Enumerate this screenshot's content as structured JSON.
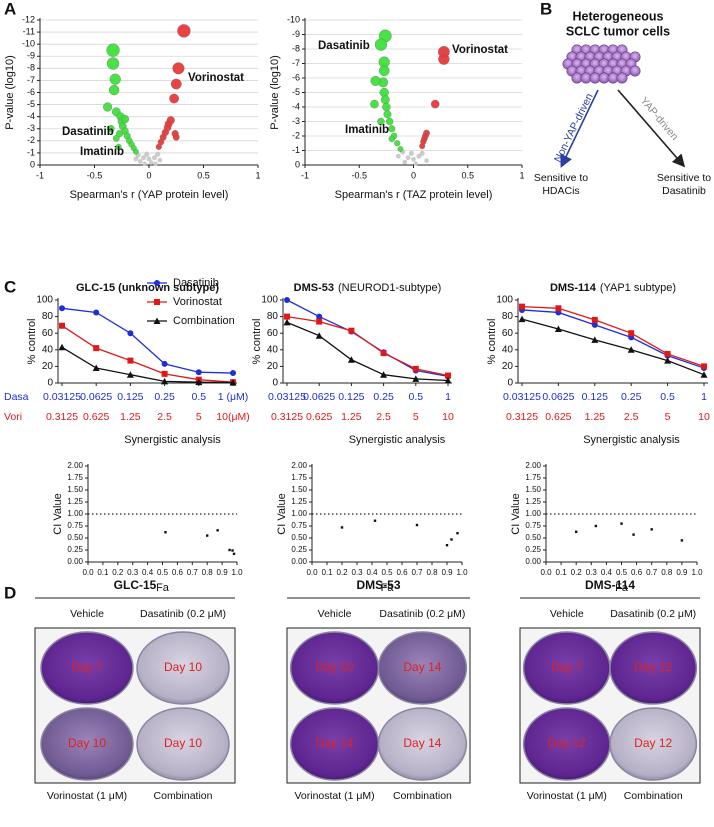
{
  "panel_labels": [
    "A",
    "B",
    "C",
    "D"
  ],
  "chart_data": [
    {
      "type": "scatter",
      "xlabel": "Spearman's r (YAP protein level)",
      "ylabel": "P-value (log10)",
      "xlim": [
        -1,
        1
      ],
      "xticks": [
        -1,
        -0.5,
        0,
        0.5,
        1
      ],
      "ylim": [
        0,
        -12
      ],
      "yticks": [
        -12,
        -11,
        -10,
        -9,
        -8,
        -7,
        -6,
        -5,
        -4,
        -3,
        -2,
        -1,
        0
      ],
      "grid": true,
      "annotations": [
        "Vorinostat",
        "Dasatinib",
        "Imatinib"
      ],
      "series": [
        {
          "color": "#c8c8c8",
          "x": [
            -0.1,
            -0.05,
            0,
            0.05,
            0.08,
            -0.08,
            0.02,
            -0.02,
            0.1,
            -0.12,
            0.06,
            -0.04
          ],
          "values": [
            -0.8,
            -0.6,
            -0.5,
            -0.6,
            -0.9,
            -0.3,
            -0.2,
            -0.9,
            -0.4,
            -0.5,
            -0.1,
            -0.1
          ]
        },
        {
          "color": "#3de03a",
          "x": [
            -0.33,
            -0.33,
            -0.31,
            -0.32,
            -0.38,
            -0.3,
            -0.26,
            -0.25,
            -0.24,
            -0.22,
            -0.2,
            -0.18,
            -0.16,
            -0.14,
            -0.12,
            -0.35,
            -0.3,
            -0.28,
            -0.22,
            -0.27
          ],
          "values": [
            -9.5,
            -8.4,
            -7.1,
            -6.2,
            -4.8,
            -4.4,
            -4.0,
            -3.6,
            -3.2,
            -2.8,
            -2.4,
            -2.0,
            -1.7,
            -1.4,
            -1.1,
            -3.0,
            -2.2,
            -1.5,
            -3.8,
            -2.6
          ]
        },
        {
          "color": "#e8393a",
          "x": [
            0.32,
            0.27,
            0.25,
            0.23,
            0.2,
            0.18,
            0.17,
            0.15,
            0.13,
            0.11,
            0.09,
            0.24,
            0.25
          ],
          "values": [
            -11.1,
            -8.0,
            -6.7,
            -5.5,
            -3.7,
            -3.4,
            -3.1,
            -2.7,
            -2.3,
            -1.9,
            -1.5,
            -2.6,
            -2.3
          ]
        }
      ]
    },
    {
      "type": "scatter",
      "xlabel": "Spearman's r (TAZ protein level)",
      "ylabel": "P-value (log10)",
      "xlim": [
        -1,
        1
      ],
      "xticks": [
        -1,
        -0.5,
        0,
        0.5,
        1
      ],
      "ylim": [
        0,
        -10
      ],
      "yticks": [
        -10,
        -9,
        -8,
        -7,
        -6,
        -5,
        -4,
        -3,
        -2,
        -1,
        0
      ],
      "grid": true,
      "annotations": [
        "Vorinostat",
        "Dasatinib",
        "Imatinib"
      ],
      "series": [
        {
          "color": "#c8c8c8",
          "x": [
            -0.1,
            -0.05,
            0,
            0.05,
            0.08,
            -0.08,
            0.02,
            -0.02,
            0.12,
            -0.14
          ],
          "values": [
            -0.9,
            -0.5,
            -0.4,
            -0.6,
            -0.8,
            -0.2,
            -0.1,
            -0.8,
            -0.3,
            -0.6
          ]
        },
        {
          "color": "#3de03a",
          "x": [
            -0.26,
            -0.3,
            -0.27,
            -0.27,
            -0.28,
            -0.27,
            -0.26,
            -0.25,
            -0.24,
            -0.22,
            -0.2,
            -0.18,
            -0.15,
            -0.12,
            -0.35,
            -0.36,
            -0.3,
            -0.2
          ],
          "values": [
            -8.9,
            -8.3,
            -7.1,
            -6.5,
            -5.7,
            -5.0,
            -4.5,
            -4.0,
            -3.5,
            -3.0,
            -2.5,
            -2.0,
            -1.5,
            -1.1,
            -5.8,
            -4.2,
            -3.0,
            -1.8
          ]
        },
        {
          "color": "#e8393a",
          "x": [
            0.28,
            0.28,
            0.2,
            0.12,
            0.11,
            0.1,
            0.09,
            0.08
          ],
          "values": [
            -7.8,
            -7.3,
            -4.2,
            -2.2,
            -2.0,
            -1.8,
            -1.6,
            -1.3
          ]
        }
      ]
    },
    {
      "type": "line",
      "title": "GLC-15 (unknown subtype)",
      "ylabel": "% control",
      "row_labels": [
        "Dasa",
        "Vori"
      ],
      "categories": [
        "0.03125",
        "0.0625",
        "0.125",
        "0.25",
        "0.5",
        "1 (μM)"
      ],
      "secondary_categories": [
        "0.3125",
        "0.625",
        "1.25",
        "2.5",
        "5",
        "10(μM)"
      ],
      "ylim": [
        0,
        100
      ],
      "yticks": [
        0,
        20,
        40,
        60,
        80,
        100
      ],
      "legend": "upper right",
      "series": [
        {
          "name": "Dasatinib",
          "color": "#1f2fd6",
          "marker": "circle",
          "values": [
            90,
            85,
            60,
            23,
            13,
            12
          ]
        },
        {
          "name": "Vorinostat",
          "color": "#e01818",
          "marker": "square",
          "values": [
            69,
            42,
            27,
            11,
            4,
            1
          ]
        },
        {
          "name": "Combination",
          "color": "#111111",
          "marker": "triangle",
          "values": [
            43,
            18,
            10,
            2,
            1,
            0.5
          ]
        }
      ]
    },
    {
      "type": "line",
      "title": "DMS-53",
      "subtitle": "(NEUROD1-subtype)",
      "ylabel": "% control",
      "categories": [
        "0.03125",
        "0.0625",
        "0.125",
        "0.25",
        "0.5",
        "1"
      ],
      "secondary_categories": [
        "0.3125",
        "0.625",
        "1.25",
        "2.5",
        "5",
        "10"
      ],
      "ylim": [
        0,
        100
      ],
      "yticks": [
        0,
        20,
        40,
        60,
        80,
        100
      ],
      "series": [
        {
          "color": "#1f2fd6",
          "marker": "circle",
          "values": [
            100,
            80,
            62,
            37,
            15,
            8
          ]
        },
        {
          "color": "#e01818",
          "marker": "square",
          "values": [
            80,
            74,
            63,
            36,
            17,
            9
          ]
        },
        {
          "color": "#111111",
          "marker": "triangle",
          "values": [
            73,
            57,
            28,
            10,
            5,
            3
          ]
        }
      ]
    },
    {
      "type": "line",
      "title": "DMS-114",
      "subtitle": "(YAP1 subtype)",
      "ylabel": "% control",
      "categories": [
        "0.03125",
        "0.0625",
        "0.125",
        "0.25",
        "0.5",
        "1"
      ],
      "secondary_categories": [
        "0.3125",
        "0.625",
        "1.25",
        "2.5",
        "5",
        "10"
      ],
      "ylim": [
        0,
        100
      ],
      "yticks": [
        0,
        20,
        40,
        60,
        80,
        100
      ],
      "series": [
        {
          "color": "#1f2fd6",
          "marker": "circle",
          "values": [
            88,
            85,
            70,
            55,
            33,
            18
          ]
        },
        {
          "color": "#e01818",
          "marker": "square",
          "values": [
            92,
            90,
            76,
            60,
            35,
            20
          ]
        },
        {
          "color": "#111111",
          "marker": "triangle",
          "values": [
            77,
            65,
            52,
            40,
            27,
            10
          ]
        }
      ]
    },
    {
      "type": "scatter",
      "title": "Synergistic analysis",
      "xlabel": "Fa",
      "ylabel": "CI Value",
      "color": "#111111",
      "reference_line": 1,
      "xlim": [
        0,
        1
      ],
      "xticks": [
        {
          "value": 0,
          "label": "0.0"
        },
        0.1,
        0.2,
        0.3,
        0.4,
        0.5,
        0.6,
        0.7,
        0.8,
        0.9,
        {
          "value": 1,
          "label": "1.0"
        }
      ],
      "ylim": [
        0,
        2
      ],
      "yticks": [
        {
          "value": 0,
          "label": "0.00"
        },
        {
          "value": 0.25,
          "label": "0.25"
        },
        {
          "value": 0.5,
          "label": "0.50"
        },
        {
          "value": 0.75,
          "label": "0.75"
        },
        {
          "value": 1,
          "label": "1.00"
        },
        {
          "value": 1.25,
          "label": "1.25"
        },
        {
          "value": 1.5,
          "label": "1.50"
        },
        {
          "value": 1.75,
          "label": "1.75"
        },
        {
          "value": 2,
          "label": "2.00"
        }
      ],
      "x": [
        0.52,
        0.8,
        0.87,
        0.95,
        0.97,
        0.98
      ],
      "values": [
        0.62,
        0.55,
        0.66,
        0.25,
        0.24,
        0.17
      ]
    },
    {
      "type": "scatter",
      "title": "Synergistic analysis",
      "xlabel": "Fa",
      "ylabel": "CI Value",
      "color": "#111111",
      "reference_line": 1,
      "xlim": [
        0,
        1
      ],
      "xticks": [
        {
          "value": 0,
          "label": "0.0"
        },
        0.1,
        0.2,
        0.3,
        0.4,
        0.5,
        0.6,
        0.7,
        0.8,
        0.9,
        {
          "value": 1,
          "label": "1.0"
        }
      ],
      "ylim": [
        0,
        2
      ],
      "yticks": [
        {
          "value": 0,
          "label": "0.00"
        },
        {
          "value": 0.25,
          "label": "0.25"
        },
        {
          "value": 0.5,
          "label": "0.50"
        },
        {
          "value": 0.75,
          "label": "0.75"
        },
        {
          "value": 1,
          "label": "1.00"
        },
        {
          "value": 1.25,
          "label": "1.25"
        },
        {
          "value": 1.5,
          "label": "1.50"
        },
        {
          "value": 1.75,
          "label": "1.75"
        },
        {
          "value": 2,
          "label": "2.00"
        }
      ],
      "x": [
        0.2,
        0.42,
        0.7,
        0.9,
        0.93,
        0.97
      ],
      "values": [
        0.72,
        0.86,
        0.77,
        0.35,
        0.47,
        0.6
      ]
    },
    {
      "type": "scatter",
      "title": "Synergistic analysis",
      "xlabel": "Fa",
      "ylabel": "CI Value",
      "color": "#111111",
      "reference_line": 1,
      "xlim": [
        0,
        1
      ],
      "xticks": [
        {
          "value": 0,
          "label": "0.0"
        },
        0.1,
        0.2,
        0.3,
        0.4,
        0.5,
        0.6,
        0.7,
        0.8,
        0.9,
        {
          "value": 1,
          "label": "1.0"
        }
      ],
      "ylim": [
        0,
        2
      ],
      "yticks": [
        {
          "value": 0,
          "label": "0.00"
        },
        {
          "value": 0.25,
          "label": "0.25"
        },
        {
          "value": 0.5,
          "label": "0.50"
        },
        {
          "value": 0.75,
          "label": "0.75"
        },
        {
          "value": 1,
          "label": "1.00"
        },
        {
          "value": 1.25,
          "label": "1.25"
        },
        {
          "value": 1.5,
          "label": "1.50"
        },
        {
          "value": 1.75,
          "label": "1.75"
        },
        {
          "value": 2,
          "label": "2.00"
        }
      ],
      "x": [
        0.2,
        0.33,
        0.5,
        0.58,
        0.7,
        0.9
      ],
      "values": [
        0.63,
        0.75,
        0.8,
        0.57,
        0.68,
        0.45
      ]
    }
  ],
  "diagram": {
    "title_lines": [
      "Heterogeneous",
      "SCLC tumor cells"
    ],
    "branches": [
      {
        "label": "Non-YAP-driven",
        "outcome": [
          "Sensitive to",
          "HDACis"
        ]
      },
      {
        "label": "YAP-driven",
        "outcome": [
          "Sensitive to",
          "Dasatinib"
        ]
      }
    ]
  },
  "plates": [
    {
      "title": "GLC-15",
      "top_labels": [
        "Vehicle",
        "Dasatinib (0.2 μM)"
      ],
      "bottom_labels": [
        "Vorinostat (1 μM)",
        "Combination"
      ],
      "days": [
        "Day 7",
        "Day 10",
        "Day 10",
        "Day 10"
      ]
    },
    {
      "title": "DMS-53",
      "top_labels": [
        "Vehicle",
        "Dasatinib (0.2 μM)"
      ],
      "bottom_labels": [
        "Vorinostat (1 μM)",
        "Combination"
      ],
      "days": [
        "Day 10",
        "Day 14",
        "Day 14",
        "Day 14"
      ]
    },
    {
      "title": "DMS-114",
      "top_labels": [
        "Vehicle",
        "Dasatinib (0.2 μM)"
      ],
      "bottom_labels": [
        "Vorinostat (1 μM)",
        "Combination"
      ],
      "days": [
        "Day 7",
        "Day 12",
        "Day 12",
        "Day 12"
      ]
    }
  ]
}
